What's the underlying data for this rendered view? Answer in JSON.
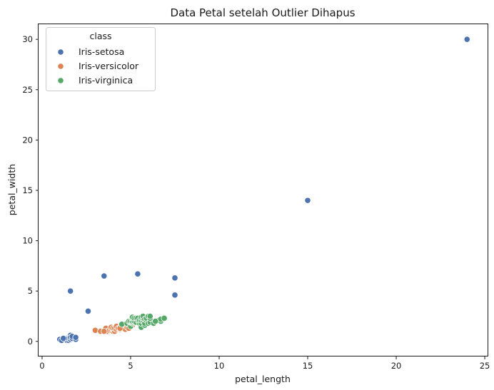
{
  "chart_data": {
    "type": "scatter",
    "title": "Data Petal setelah Outlier Dihapus",
    "xlabel": "petal_length",
    "ylabel": "petal_width",
    "xlim": [
      -0.2,
      25.2
    ],
    "ylim": [
      -1.5,
      31.5
    ],
    "xticks": [
      0,
      5,
      10,
      15,
      20,
      25
    ],
    "yticks": [
      0,
      5,
      10,
      15,
      20,
      25,
      30
    ],
    "grid": false,
    "legend": {
      "title": "class",
      "placement": "top-left"
    },
    "series": [
      {
        "name": "Iris-setosa",
        "color": "#4c72b0",
        "points": [
          [
            1.0,
            0.2
          ],
          [
            1.2,
            0.2
          ],
          [
            1.3,
            0.2
          ],
          [
            1.3,
            0.3
          ],
          [
            1.4,
            0.2
          ],
          [
            1.4,
            0.3
          ],
          [
            1.4,
            0.1
          ],
          [
            1.5,
            0.2
          ],
          [
            1.5,
            0.4
          ],
          [
            1.5,
            0.1
          ],
          [
            1.5,
            0.3
          ],
          [
            1.6,
            0.2
          ],
          [
            1.6,
            0.6
          ],
          [
            1.6,
            0.4
          ],
          [
            1.7,
            0.3
          ],
          [
            1.7,
            0.5
          ],
          [
            1.9,
            0.2
          ],
          [
            1.9,
            0.4
          ],
          [
            1.1,
            0.1
          ],
          [
            1.2,
            0.3
          ],
          [
            1.6,
            5.0
          ],
          [
            2.6,
            3.0
          ],
          [
            3.5,
            6.5
          ],
          [
            5.4,
            6.7
          ],
          [
            7.5,
            6.3
          ],
          [
            7.5,
            4.6
          ],
          [
            15.0,
            14.0
          ],
          [
            24.0,
            30.0
          ]
        ]
      },
      {
        "name": "Iris-versicolor",
        "color": "#dd8452",
        "points": [
          [
            3.0,
            1.1
          ],
          [
            3.3,
            1.0
          ],
          [
            3.5,
            1.0
          ],
          [
            3.6,
            1.3
          ],
          [
            3.7,
            1.0
          ],
          [
            3.8,
            1.1
          ],
          [
            3.9,
            1.1
          ],
          [
            3.9,
            1.4
          ],
          [
            4.0,
            1.0
          ],
          [
            4.0,
            1.2
          ],
          [
            4.0,
            1.3
          ],
          [
            4.1,
            1.0
          ],
          [
            4.1,
            1.3
          ],
          [
            4.2,
            1.2
          ],
          [
            4.2,
            1.5
          ],
          [
            4.3,
            1.3
          ],
          [
            4.4,
            1.2
          ],
          [
            4.4,
            1.4
          ],
          [
            4.5,
            1.5
          ],
          [
            4.5,
            1.3
          ],
          [
            4.6,
            1.4
          ],
          [
            4.6,
            1.5
          ],
          [
            4.7,
            1.4
          ],
          [
            4.7,
            1.2
          ],
          [
            4.8,
            1.4
          ],
          [
            4.8,
            1.8
          ],
          [
            4.9,
            1.5
          ],
          [
            5.0,
            1.7
          ],
          [
            5.1,
            1.6
          ],
          [
            4.5,
            1.6
          ],
          [
            4.4,
            1.3
          ],
          [
            3.5,
            1.0
          ],
          [
            4.9,
            1.3
          ]
        ]
      },
      {
        "name": "Iris-virginica",
        "color": "#55a868",
        "points": [
          [
            4.5,
            1.7
          ],
          [
            4.8,
            1.8
          ],
          [
            4.9,
            2.0
          ],
          [
            5.0,
            1.5
          ],
          [
            5.0,
            1.9
          ],
          [
            5.0,
            2.0
          ],
          [
            5.1,
            1.8
          ],
          [
            5.1,
            1.9
          ],
          [
            5.1,
            2.0
          ],
          [
            5.1,
            2.3
          ],
          [
            5.1,
            2.4
          ],
          [
            5.2,
            2.0
          ],
          [
            5.2,
            2.3
          ],
          [
            5.3,
            1.9
          ],
          [
            5.3,
            2.3
          ],
          [
            5.4,
            2.1
          ],
          [
            5.4,
            2.3
          ],
          [
            5.5,
            1.8
          ],
          [
            5.5,
            2.1
          ],
          [
            5.6,
            1.4
          ],
          [
            5.6,
            1.8
          ],
          [
            5.6,
            2.1
          ],
          [
            5.6,
            2.4
          ],
          [
            5.7,
            2.1
          ],
          [
            5.7,
            2.3
          ],
          [
            5.7,
            2.5
          ],
          [
            5.8,
            1.6
          ],
          [
            5.8,
            1.8
          ],
          [
            5.8,
            2.2
          ],
          [
            5.9,
            2.1
          ],
          [
            5.9,
            2.3
          ],
          [
            6.0,
            1.8
          ],
          [
            6.0,
            2.5
          ],
          [
            6.1,
            1.9
          ],
          [
            6.1,
            2.3
          ],
          [
            6.1,
            2.5
          ],
          [
            6.3,
            1.8
          ],
          [
            6.6,
            2.1
          ],
          [
            6.7,
            2.0
          ],
          [
            6.7,
            2.2
          ],
          [
            6.9,
            2.3
          ],
          [
            6.4,
            2.0
          ]
        ]
      }
    ]
  }
}
